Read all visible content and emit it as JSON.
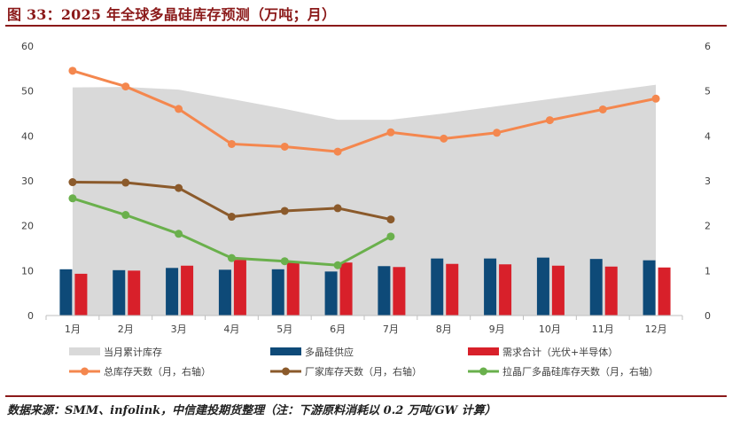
{
  "title": "图 33：2025 年全球多晶硅库存预测（万吨；月）",
  "source": "数据来源：SMM、infolink，中信建投期货整理（注：下游原料消耗以 0.2 万吨/GW 计算）",
  "colors": {
    "area": "#d9d9d9",
    "supply": "#0e4a78",
    "demand": "#d8202a",
    "total_days": "#f4874e",
    "factory_days": "#8b5a2b",
    "pulling_days": "#6ab04c",
    "axis": "#595959"
  },
  "chart_data": {
    "type": "bar",
    "title": "2025 年全球多晶硅库存预测（万吨；月）",
    "categories": [
      "1月",
      "2月",
      "3月",
      "4月",
      "5月",
      "6月",
      "7月",
      "8月",
      "9月",
      "10月",
      "11月",
      "12月"
    ],
    "y_left": {
      "min": 0,
      "max": 60,
      "ticks": [
        0,
        10,
        20,
        30,
        40,
        50,
        60
      ]
    },
    "y_right": {
      "min": 0,
      "max": 6,
      "ticks": [
        0,
        1,
        2,
        3,
        4,
        5,
        6
      ]
    },
    "series": [
      {
        "name": "当月累计库存",
        "kind": "area",
        "axis": "left",
        "values": [
          50.8,
          50.9,
          50.3,
          48.2,
          46.0,
          43.6,
          43.6,
          45.0,
          46.6,
          48.2,
          49.8,
          51.4
        ]
      },
      {
        "name": "多晶硅供应",
        "kind": "bar",
        "axis": "left",
        "values": [
          10.3,
          10.1,
          10.6,
          10.2,
          10.3,
          9.8,
          11.0,
          12.7,
          12.7,
          12.9,
          12.6,
          12.3
        ]
      },
      {
        "name": "需求合计（光伏+半导体）",
        "kind": "bar",
        "axis": "left",
        "values": [
          9.3,
          10.0,
          11.1,
          12.4,
          12.0,
          11.8,
          10.8,
          11.5,
          11.4,
          11.1,
          10.9,
          10.7
        ]
      },
      {
        "name": "总库存天数（月，右轴）",
        "kind": "line",
        "axis": "right",
        "values": [
          5.45,
          5.1,
          4.6,
          3.82,
          3.76,
          3.65,
          4.08,
          3.94,
          4.07,
          4.35,
          4.59,
          4.83
        ]
      },
      {
        "name": "厂家库存天数（月，右轴）",
        "kind": "line",
        "axis": "right",
        "values": [
          2.97,
          2.96,
          2.84,
          2.2,
          2.33,
          2.39,
          2.14,
          null,
          null,
          null,
          null,
          null
        ]
      },
      {
        "name": "拉晶厂多晶硅库存天数（月，右轴）",
        "kind": "line",
        "axis": "right",
        "values": [
          2.61,
          2.24,
          1.82,
          1.28,
          1.21,
          1.12,
          1.76,
          null,
          null,
          null,
          null,
          null
        ]
      }
    ]
  }
}
